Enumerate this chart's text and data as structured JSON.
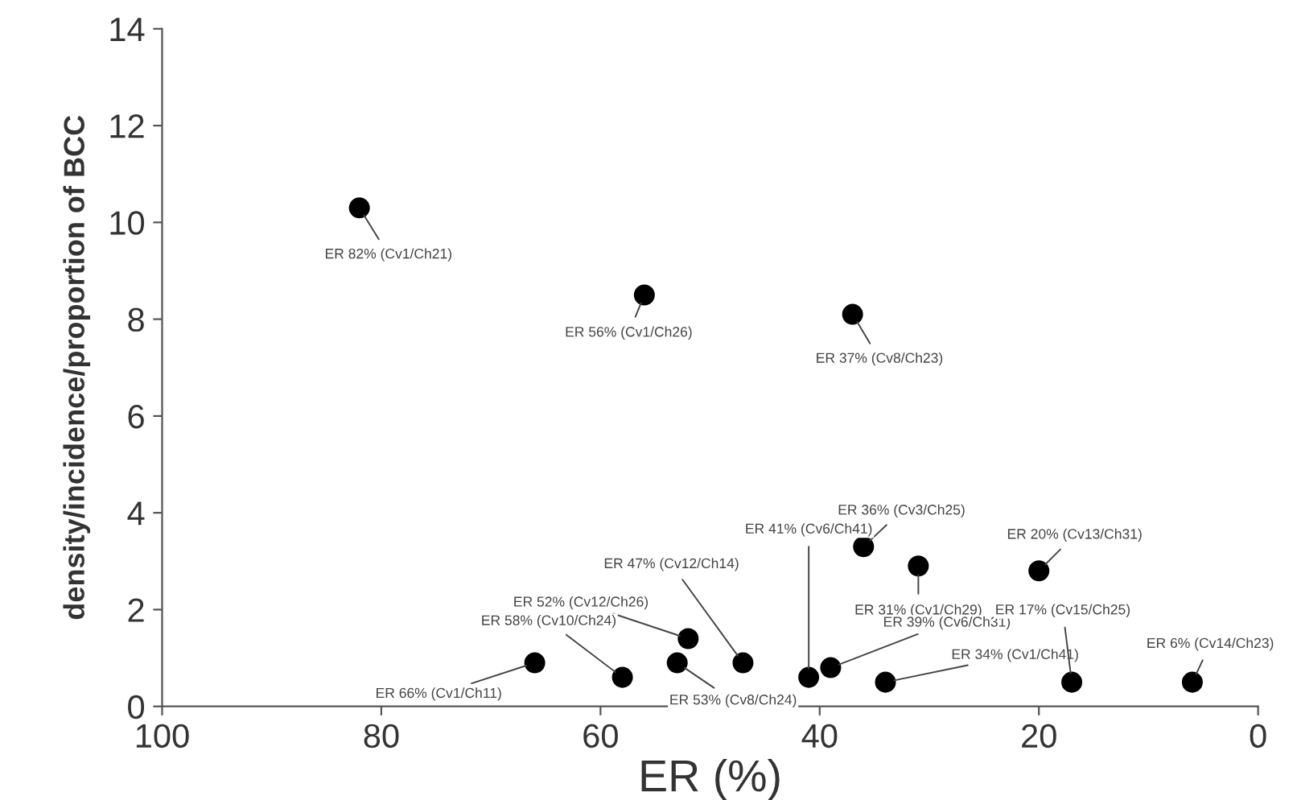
{
  "chart_data": {
    "type": "scatter",
    "xlabel": "ER (%)",
    "ylabel": "density/incidence/proportion of BCC",
    "xlim": [
      100,
      0
    ],
    "xticks": [
      100,
      80,
      60,
      40,
      20,
      0
    ],
    "ylim": [
      0,
      14
    ],
    "yticks": [
      0,
      2,
      4,
      6,
      8,
      10,
      12,
      14
    ],
    "grid": false,
    "marker": "circle",
    "series": [
      {
        "color": "#000000",
        "x": [
          82,
          56,
          37,
          36,
          41,
          31,
          47,
          52,
          58,
          66,
          53,
          39,
          34,
          20,
          17,
          6
        ],
        "values": [
          10.3,
          8.5,
          8.1,
          3.3,
          0.6,
          2.9,
          0.9,
          1.4,
          0.6,
          0.9,
          0.9,
          0.8,
          0.5,
          2.8,
          0.5,
          0.5
        ]
      }
    ],
    "annotations": [
      {
        "text": "ER 82% (Cv1/Ch21)",
        "x": 82,
        "y": 10.3
      },
      {
        "text": "ER 56% (Cv1/Ch26)",
        "x": 56,
        "y": 8.5
      },
      {
        "text": "ER 37% (Cv8/Ch23)",
        "x": 37,
        "y": 8.1
      },
      {
        "text": "ER 36% (Cv3/Ch25)",
        "x": 36,
        "y": 3.3
      },
      {
        "text": "ER 41% (Cv6/Ch41)",
        "x": 41,
        "y": 0.6
      },
      {
        "text": "ER 31% (Cv1/Ch29)",
        "x": 31,
        "y": 2.9
      },
      {
        "text": "ER 47% (Cv12/Ch14)",
        "x": 47,
        "y": 0.9
      },
      {
        "text": "ER 52% (Cv12/Ch26)",
        "x": 52,
        "y": 1.4
      },
      {
        "text": "ER 58% (Cv10/Ch24)",
        "x": 58,
        "y": 0.6
      },
      {
        "text": "ER 66% (Cv1/Ch11)",
        "x": 66,
        "y": 0.9
      },
      {
        "text": "ER 53% (Cv8/Ch24)",
        "x": 53,
        "y": 0.9
      },
      {
        "text": "ER 39% (Cv6/Ch31)",
        "x": 39,
        "y": 0.8
      },
      {
        "text": "ER 34% (Cv1/Ch41)",
        "x": 34,
        "y": 0.5
      },
      {
        "text": "ER 20% (Cv13/Ch31)",
        "x": 20,
        "y": 2.8
      },
      {
        "text": "ER 17% (Cv15/Ch25)",
        "x": 17,
        "y": 0.5
      },
      {
        "text": "ER 6% (Cv14/Ch23)",
        "x": 6,
        "y": 0.5
      }
    ]
  }
}
